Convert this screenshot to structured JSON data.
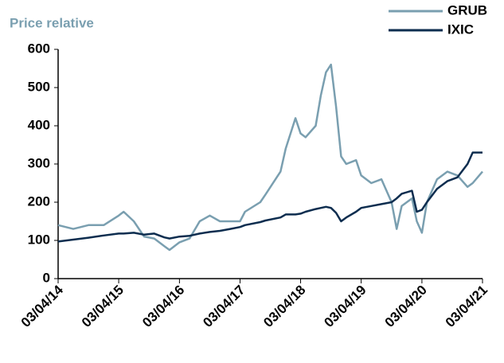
{
  "chart_data": {
    "type": "line",
    "title": "Price relative",
    "x": [
      "2014-04-03",
      "2014-07-03",
      "2014-10-03",
      "2015-01-03",
      "2015-04-03",
      "2015-05-03",
      "2015-07-03",
      "2015-09-03",
      "2015-11-03",
      "2016-01-03",
      "2016-02-03",
      "2016-04-03",
      "2016-06-03",
      "2016-08-03",
      "2016-10-03",
      "2016-12-03",
      "2017-02-03",
      "2017-04-03",
      "2017-05-03",
      "2017-08-03",
      "2017-09-03",
      "2017-12-03",
      "2018-01-03",
      "2018-03-03",
      "2018-04-03",
      "2018-05-03",
      "2018-07-03",
      "2018-08-03",
      "2018-09-03",
      "2018-10-03",
      "2018-11-03",
      "2018-12-03",
      "2019-01-03",
      "2019-03-03",
      "2019-04-03",
      "2019-06-03",
      "2019-08-03",
      "2019-10-03",
      "2019-11-03",
      "2019-12-03",
      "2020-02-03",
      "2020-03-03",
      "2020-04-03",
      "2020-05-03",
      "2020-07-03",
      "2020-09-03",
      "2020-11-03",
      "2021-01-03",
      "2021-02-03",
      "2021-04-03"
    ],
    "series": [
      {
        "name": "GRUB",
        "color": "#7a9fb0",
        "values": [
          140,
          130,
          140,
          140,
          165,
          175,
          150,
          110,
          105,
          85,
          75,
          95,
          105,
          150,
          165,
          150,
          150,
          150,
          175,
          200,
          220,
          280,
          340,
          420,
          380,
          370,
          400,
          480,
          540,
          560,
          450,
          320,
          300,
          310,
          270,
          250,
          260,
          200,
          130,
          190,
          210,
          150,
          120,
          200,
          260,
          280,
          270,
          240,
          250,
          280
        ]
      },
      {
        "name": "IXIC",
        "color": "#0d2d4f",
        "values": [
          97,
          102,
          107,
          113,
          118,
          118,
          120,
          115,
          118,
          108,
          105,
          110,
          112,
          118,
          122,
          125,
          130,
          135,
          140,
          148,
          152,
          160,
          168,
          168,
          170,
          175,
          182,
          185,
          188,
          185,
          172,
          150,
          160,
          175,
          185,
          190,
          195,
          200,
          210,
          222,
          230,
          175,
          180,
          200,
          235,
          255,
          265,
          300,
          330,
          330
        ]
      }
    ],
    "xlim": [
      "2014-04-03",
      "2021-04-03"
    ],
    "xticks": [
      {
        "value": "2014-04-03",
        "label": "03/04/14"
      },
      {
        "value": "2015-04-03",
        "label": "03/04/15"
      },
      {
        "value": "2016-04-03",
        "label": "03/04/16"
      },
      {
        "value": "2017-04-03",
        "label": "03/04/17"
      },
      {
        "value": "2018-04-03",
        "label": "03/04/18"
      },
      {
        "value": "2019-04-03",
        "label": "03/04/19"
      },
      {
        "value": "2020-04-03",
        "label": "03/04/20"
      },
      {
        "value": "2021-04-03",
        "label": "03/04/21"
      }
    ],
    "ylim": [
      0,
      600
    ],
    "yticks": [
      0,
      100,
      200,
      300,
      400,
      500,
      600
    ],
    "legend": "top-right"
  }
}
